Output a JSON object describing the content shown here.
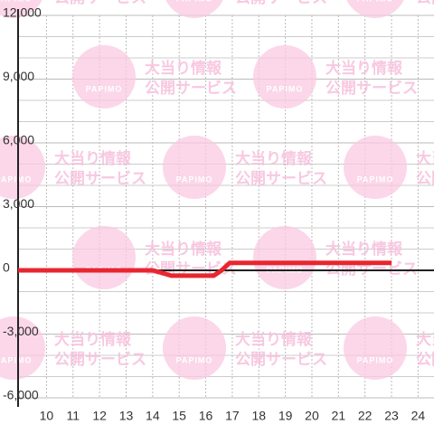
{
  "chart_data": {
    "type": "line",
    "watermark": {
      "logo": "PAPIMO",
      "line1": "大当り情報",
      "line2": "公開サービス"
    },
    "xlim": [
      8.93,
      24.6
    ],
    "xticks": [
      10,
      11,
      12,
      13,
      14,
      15,
      16,
      17,
      18,
      19,
      20,
      21,
      22,
      23,
      24
    ],
    "ylim": [
      -6000,
      12000
    ],
    "yticks": [
      {
        "value": -6000,
        "label": "-6,000"
      },
      {
        "value": -3000,
        "label": "-3,000"
      },
      0,
      {
        "value": 3000,
        "label": "3,000"
      },
      {
        "value": 6000,
        "label": "6,000"
      },
      {
        "value": 9000,
        "label": "9,000"
      },
      {
        "value": 12000,
        "label": "12,000"
      }
    ],
    "ygrid": [
      -5000,
      -4000,
      -2000,
      -1000,
      1000,
      2000,
      4000,
      5000,
      7000,
      8000,
      10000,
      11000
    ],
    "grid": true,
    "series": [
      {
        "color": "#e8262f",
        "x": [
          8.93,
          14,
          14.3,
          14.7,
          16.3,
          16.6,
          16.9,
          23
        ],
        "values": [
          0,
          0,
          -100,
          -250,
          -250,
          0,
          350,
          350
        ]
      }
    ]
  }
}
